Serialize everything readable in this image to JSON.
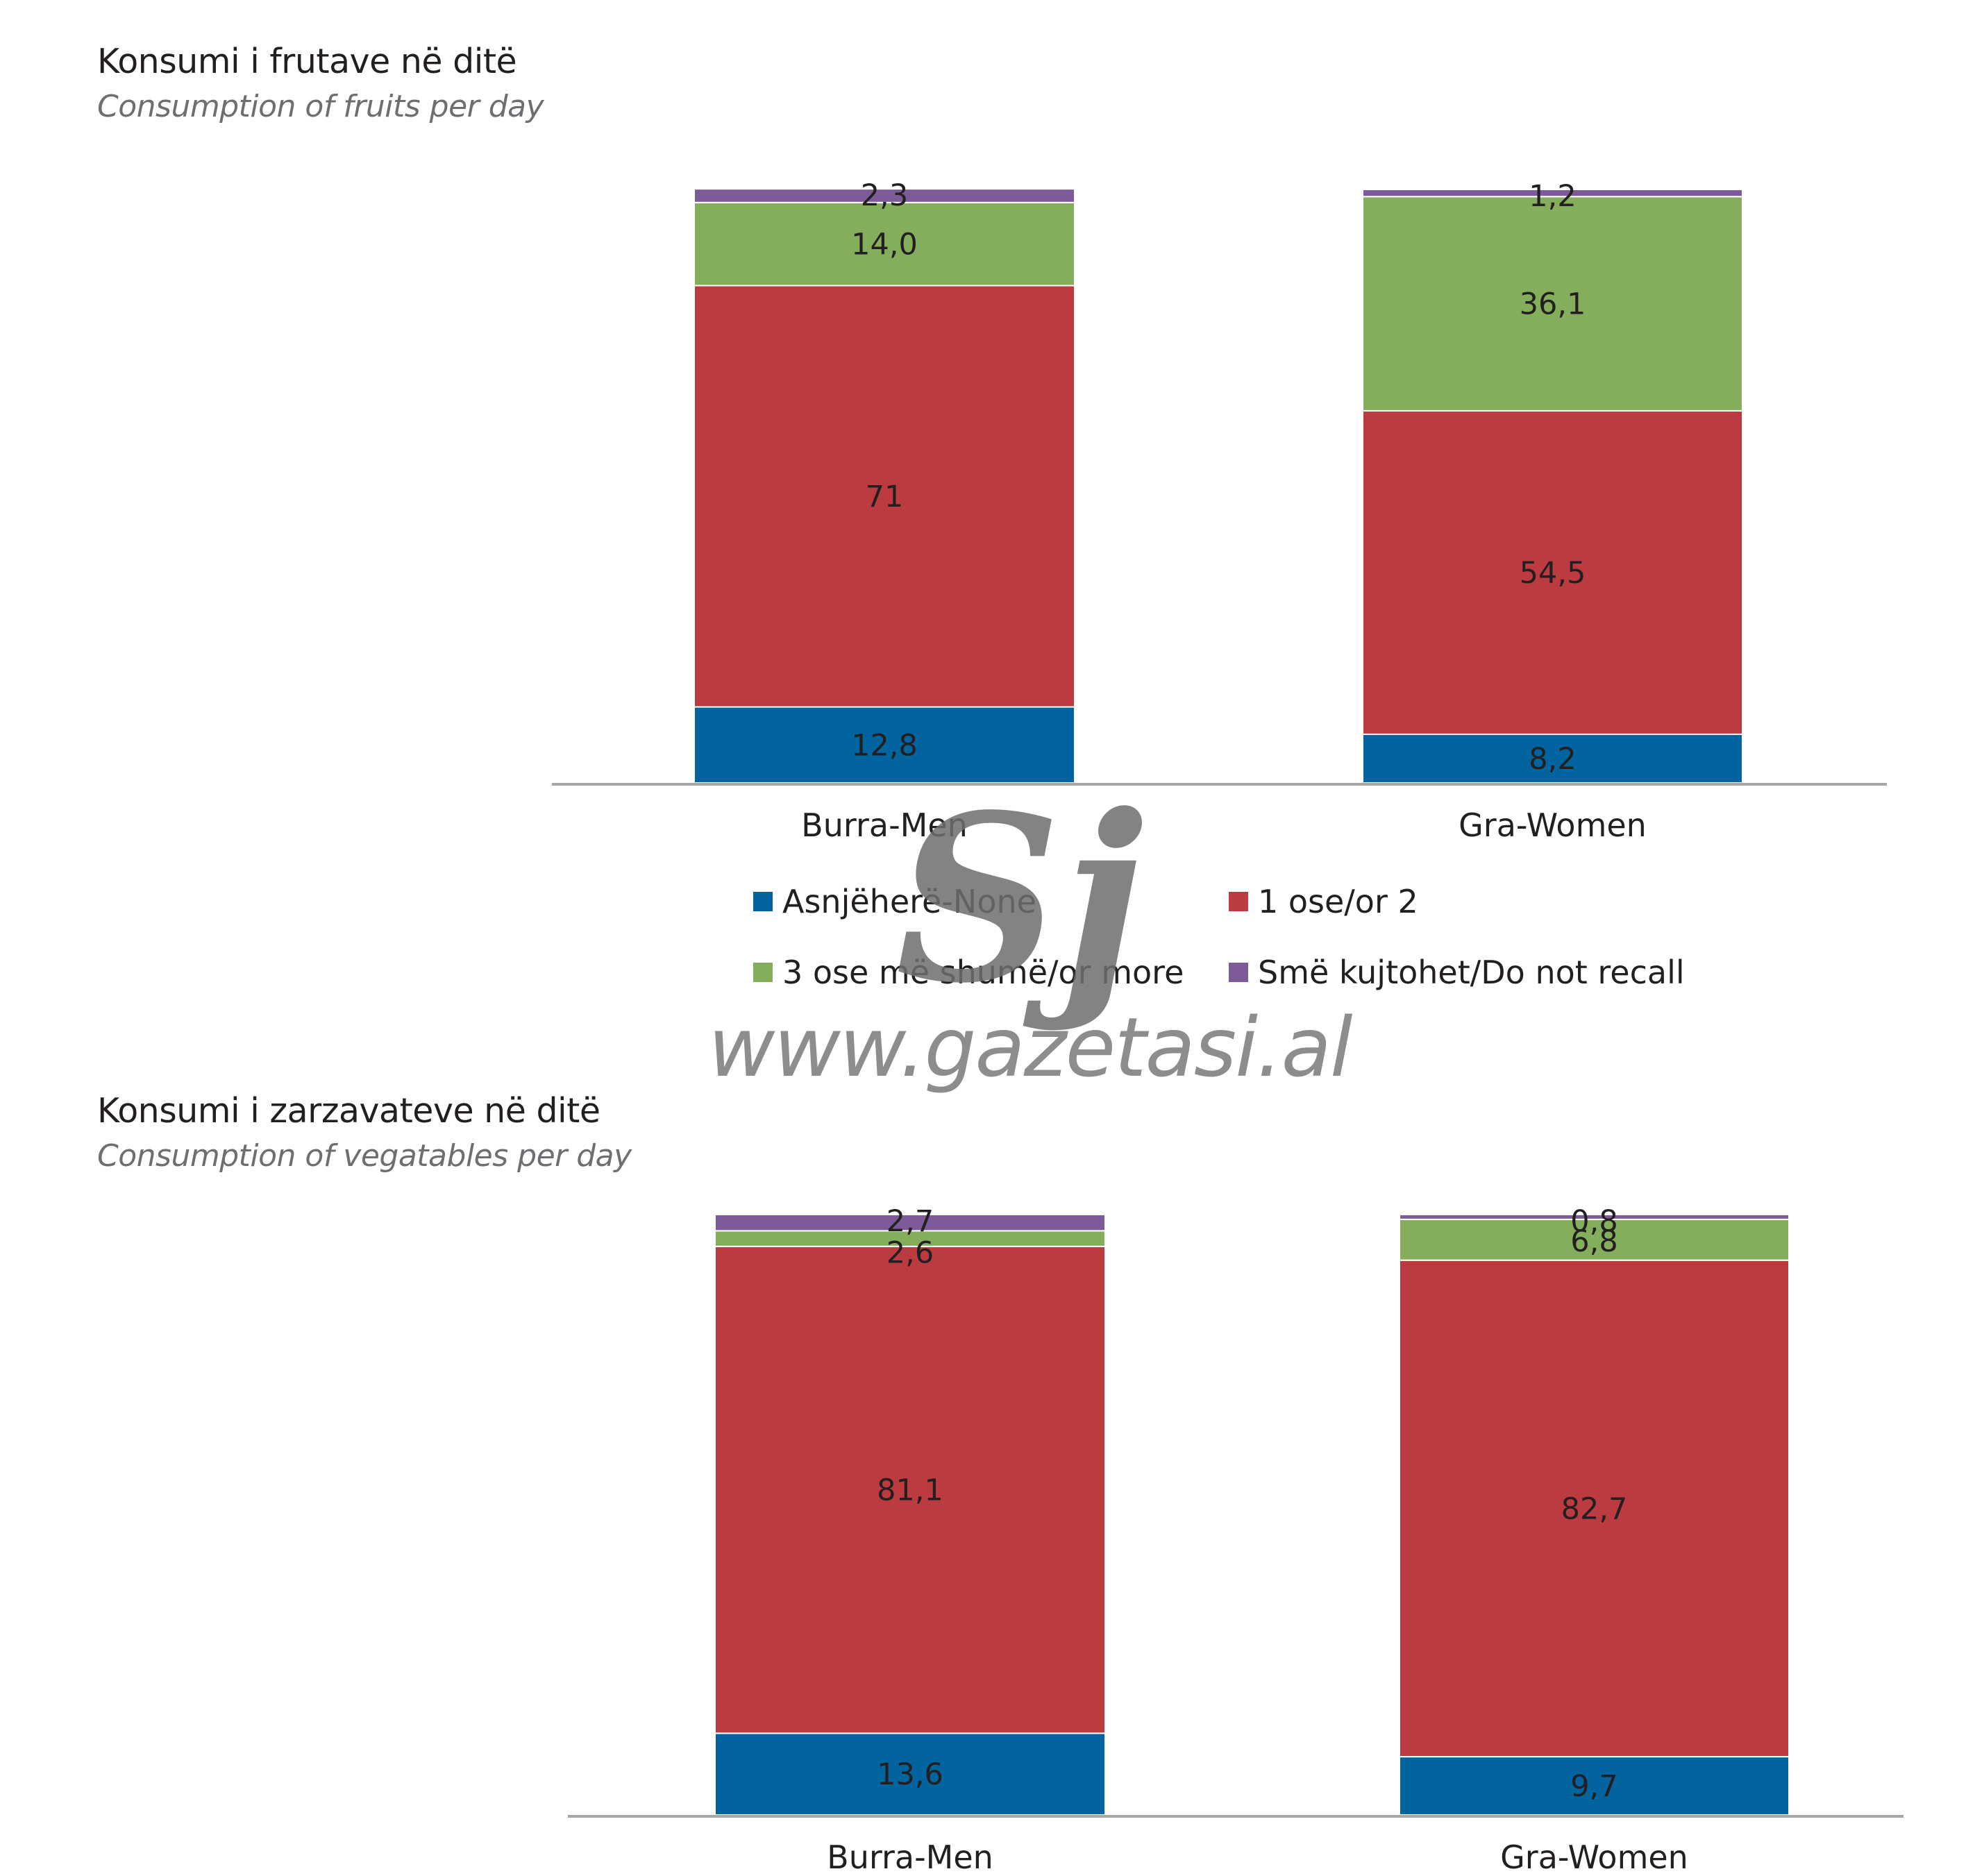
{
  "colors": {
    "none": "#01649e",
    "one_two": "#bb3b41",
    "three_more": "#84ae5c",
    "not_recall": "#7c5b98",
    "axis": "#a6a6a6"
  },
  "legend": [
    {
      "key": "none",
      "label": "Asnjëherë-None"
    },
    {
      "key": "one_two",
      "label": "1 ose/or 2"
    },
    {
      "key": "three_more",
      "label": "3 ose më shumë/or more"
    },
    {
      "key": "not_recall",
      "label": "Smë kujtohet/Do not recall"
    }
  ],
  "watermark": {
    "logo": "Sj",
    "url": "www.gazetasi.al"
  },
  "chart_data": [
    {
      "type": "bar",
      "stacked": true,
      "title": "Konsumi i frutave në ditë",
      "subtitle": "Consumption of fruits per day",
      "categories": [
        "Burra-Men",
        "Gra-Women"
      ],
      "series": [
        {
          "name": "Asnjëherë-None",
          "values": [
            12.8,
            8.2
          ],
          "labels": [
            "12,8",
            "8,2"
          ]
        },
        {
          "name": "1 ose/or 2",
          "values": [
            71,
            54.5
          ],
          "labels": [
            "71",
            "54,5"
          ]
        },
        {
          "name": "3 ose më shumë/or more",
          "values": [
            14.0,
            36.1
          ],
          "labels": [
            "14,0",
            "36,1"
          ]
        },
        {
          "name": "Smë kujtohet/Do not recall",
          "values": [
            2.3,
            1.2
          ],
          "labels": [
            "2,3",
            "1,2"
          ]
        }
      ]
    },
    {
      "type": "bar",
      "stacked": true,
      "title": "Konsumi i zarzavateve në ditë",
      "subtitle": "Consumption of vegatables per day",
      "categories": [
        "Burra-Men",
        "Gra-Women"
      ],
      "series": [
        {
          "name": "Asnjëherë-None",
          "values": [
            13.6,
            9.7
          ],
          "labels": [
            "13,6",
            "9,7"
          ]
        },
        {
          "name": "1 ose/or 2",
          "values": [
            81.1,
            82.7
          ],
          "labels": [
            "81,1",
            "82,7"
          ]
        },
        {
          "name": "3 ose më shumë/or more",
          "values": [
            2.6,
            6.8
          ],
          "labels": [
            "2,6",
            "6,8"
          ]
        },
        {
          "name": "Smë kujtohet/Do not recall",
          "values": [
            2.7,
            0.8
          ],
          "labels": [
            "2,7",
            "0,8"
          ]
        }
      ]
    }
  ]
}
